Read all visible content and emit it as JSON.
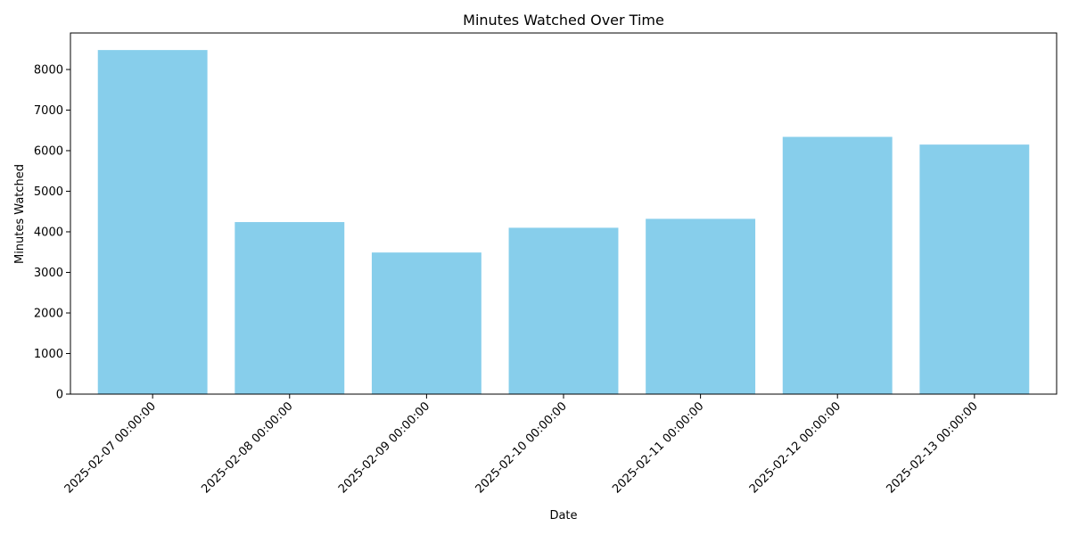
{
  "chart_data": {
    "type": "bar",
    "title": "Minutes Watched Over Time",
    "xlabel": "Date",
    "ylabel": "Minutes Watched",
    "categories": [
      "2025-02-07 00:00:00",
      "2025-02-08 00:00:00",
      "2025-02-09 00:00:00",
      "2025-02-10 00:00:00",
      "2025-02-11 00:00:00",
      "2025-02-12 00:00:00",
      "2025-02-13 00:00:00"
    ],
    "values": [
      8480,
      4240,
      3490,
      4100,
      4320,
      6340,
      6150
    ],
    "ylim": [
      0,
      8900
    ],
    "yticks": [
      0,
      1000,
      2000,
      3000,
      4000,
      5000,
      6000,
      7000,
      8000
    ],
    "bar_color": "#87ceeb",
    "grid": false,
    "legend": "none"
  }
}
